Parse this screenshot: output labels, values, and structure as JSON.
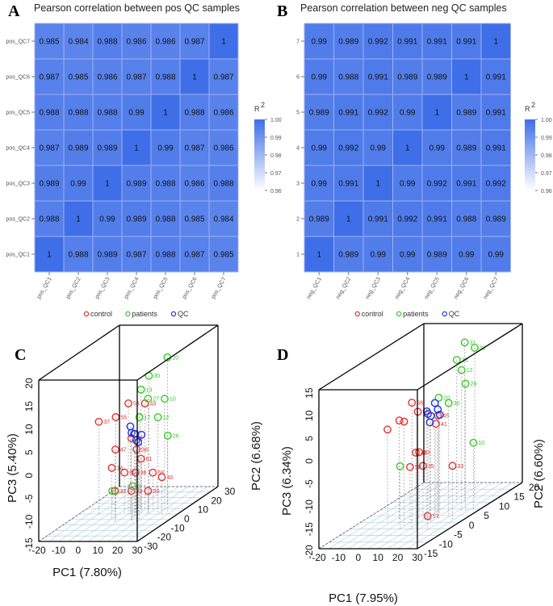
{
  "colors": {
    "control": "#e83030",
    "patients": "#33cc22",
    "qc": "#2233dd",
    "cell_high": "#3f6fe8",
    "cell_low": "#ffffff",
    "grid": "#aaccdd"
  },
  "legend": {
    "control": "control",
    "patients": "patients",
    "qc": "QC"
  },
  "chart_data": [
    {
      "panel": "A",
      "type": "heatmap",
      "title": "Pearson correlation between pos QC samples",
      "samples": [
        "pos_QC1",
        "pos_QC2",
        "pos_QC3",
        "pos_QC4",
        "pos_QC5",
        "pos_QC6",
        "pos_QC7"
      ],
      "matrix_top_to_bottom": [
        [
          "0.985",
          "0.984",
          "0.988",
          "0.986",
          "0.986",
          "0.987",
          "1"
        ],
        [
          "0.987",
          "0.985",
          "0.986",
          "0.987",
          "0.988",
          "1",
          "0.987"
        ],
        [
          "0.988",
          "0.988",
          "0.988",
          "0.99",
          "1",
          "0.988",
          "0.986"
        ],
        [
          "0.987",
          "0.989",
          "0.989",
          "1",
          "0.99",
          "0.987",
          "0.986"
        ],
        [
          "0.989",
          "0.99",
          "1",
          "0.989",
          "0.988",
          "0.986",
          "0.988"
        ],
        [
          "0.988",
          "1",
          "0.99",
          "0.989",
          "0.988",
          "0.985",
          "0.984"
        ],
        [
          "1",
          "0.988",
          "0.989",
          "0.987",
          "0.988",
          "0.987",
          "0.985"
        ]
      ],
      "colorbar": {
        "title": "R",
        "superscript": "2",
        "range": [
          0.96,
          1.0
        ],
        "ticks": [
          "1.00",
          "0.99",
          "0.98",
          "0.97",
          "0.96"
        ]
      }
    },
    {
      "panel": "B",
      "type": "heatmap",
      "title": "Pearson correlation between neg QC samples",
      "samples": [
        "neg_QC1",
        "neg_QC2",
        "neg_QC3",
        "neg_QC4",
        "neg_QC5",
        "neg_QC6",
        "neg_QC7"
      ],
      "row_labels_visible": [
        "1",
        "2",
        "3",
        "4",
        "5",
        "6",
        "7"
      ],
      "matrix_top_to_bottom": [
        [
          "0.99",
          "0.989",
          "0.992",
          "0.991",
          "0.991",
          "0.991",
          "1"
        ],
        [
          "0.99",
          "0.988",
          "0.991",
          "0.989",
          "0.989",
          "1",
          "0.991"
        ],
        [
          "0.989",
          "0.991",
          "0.992",
          "0.99",
          "1",
          "0.989",
          "0.991"
        ],
        [
          "0.99",
          "0.992",
          "0.99",
          "1",
          "0.99",
          "0.989",
          "0.991"
        ],
        [
          "0.99",
          "0.991",
          "1",
          "0.99",
          "0.992",
          "0.991",
          "0.992"
        ],
        [
          "0.989",
          "1",
          "0.991",
          "0.992",
          "0.991",
          "0.988",
          "0.989"
        ],
        [
          "1",
          "0.989",
          "0.99",
          "0.99",
          "0.989",
          "0.99",
          "0.99"
        ]
      ],
      "colorbar": {
        "title": "R",
        "superscript": "2",
        "range": [
          0.96,
          1.0
        ],
        "ticks": [
          "1.00",
          "0.99",
          "0.98",
          "0.97",
          "0.96"
        ]
      }
    },
    {
      "panel": "C",
      "type": "scatter",
      "dimensions": 3,
      "xlabel": "PC1 (7.80%)",
      "ylabel": "PC2 (6.68%)",
      "zlabel": "PC3 (5.40%)",
      "xlim": [
        -20,
        30
      ],
      "ylim": [
        -30,
        30
      ],
      "zlim": [
        -15,
        20
      ],
      "x_ticks": [
        "-20",
        "-10",
        "0",
        "10",
        "20",
        "30"
      ],
      "y_ticks": [
        "-30",
        "-20",
        "-10",
        "0",
        "10",
        "20",
        "30"
      ],
      "z_ticks": [
        "-15",
        "-10",
        "-5",
        "0",
        "5",
        "10",
        "15",
        "20"
      ],
      "series": [
        {
          "name": "control",
          "points": [
            {
              "x": -10,
              "y": 0,
              "z": 5,
              "label": "37"
            },
            {
              "x": 2,
              "y": -5,
              "z": 7,
              "label": "55"
            },
            {
              "x": 5,
              "y": 0,
              "z": 9,
              "label": "56"
            },
            {
              "x": 10,
              "y": 5,
              "z": 8,
              "label": "43"
            },
            {
              "x": 12,
              "y": -8,
              "z": 3,
              "label": "62"
            },
            {
              "x": 16,
              "y": -10,
              "z": 1,
              "label": "38"
            },
            {
              "x": -5,
              "y": 5,
              "z": -2,
              "label": "47"
            },
            {
              "x": 0,
              "y": -5,
              "z": -4,
              "label": "34"
            },
            {
              "x": 3,
              "y": 0,
              "z": -6,
              "label": "60"
            },
            {
              "x": 8,
              "y": 5,
              "z": -4,
              "label": "61"
            },
            {
              "x": 12,
              "y": -5,
              "z": -5,
              "label": "36"
            },
            {
              "x": 5,
              "y": -10,
              "z": -8,
              "label": "33"
            },
            {
              "x": 10,
              "y": -5,
              "z": -9,
              "label": "48"
            },
            {
              "x": 15,
              "y": 0,
              "z": -10,
              "label": "39"
            },
            {
              "x": 22,
              "y": 0,
              "z": -7,
              "label": "40"
            },
            {
              "x": 14,
              "y": 5,
              "z": -7,
              "label": "59"
            }
          ]
        },
        {
          "name": "patients",
          "points": [
            {
              "x": 12,
              "y": 5,
              "z": 14,
              "label": "30"
            },
            {
              "x": 18,
              "y": 10,
              "z": 17,
              "label": "20"
            },
            {
              "x": 8,
              "y": 5,
              "z": 11,
              "label": "13"
            },
            {
              "x": 15,
              "y": 0,
              "z": 10,
              "label": "27"
            },
            {
              "x": 20,
              "y": 5,
              "z": 9,
              "label": "10"
            },
            {
              "x": 14,
              "y": -5,
              "z": 7,
              "label": "17"
            },
            {
              "x": 20,
              "y": 0,
              "z": 6,
              "label": "12"
            },
            {
              "x": 25,
              "y": 0,
              "z": 2,
              "label": "26"
            },
            {
              "x": -10,
              "y": 10,
              "z": -12,
              "label": "1"
            },
            {
              "x": 14,
              "y": -10,
              "z": -7,
              "label": "2"
            }
          ]
        },
        {
          "name": "QC",
          "points": [
            {
              "x": 6,
              "y": 0,
              "z": 4
            },
            {
              "x": 8,
              "y": -2,
              "z": 3
            },
            {
              "x": 7,
              "y": 2,
              "z": 2
            },
            {
              "x": 9,
              "y": 0,
              "z": 1
            },
            {
              "x": 10,
              "y": -3,
              "z": 3
            },
            {
              "x": 8,
              "y": 3,
              "z": 0
            },
            {
              "x": 11,
              "y": 1,
              "z": 2
            }
          ]
        }
      ]
    },
    {
      "panel": "D",
      "type": "scatter",
      "dimensions": 3,
      "xlabel": "PC1 (7.95%)",
      "ylabel": "PC2 (6.60%)",
      "zlabel": "PC3 (6.34%)",
      "xlim": [
        -20,
        30
      ],
      "ylim": [
        -15,
        20
      ],
      "zlim": [
        -20,
        15
      ],
      "x_ticks": [
        "-20",
        "-10",
        "0",
        "10",
        "20",
        "30"
      ],
      "y_ticks": [
        "-15",
        "-10",
        "-5",
        "0",
        "5",
        "10",
        "15",
        "20"
      ],
      "z_ticks": [
        "-20",
        "-15",
        "-10",
        "-5",
        "0",
        "5",
        "10",
        "15"
      ],
      "series": [
        {
          "name": "control",
          "points": [
            {
              "x": 12,
              "y": -5,
              "z": 8,
              "label": "58"
            },
            {
              "x": 15,
              "y": -5,
              "z": 6,
              "label": "55"
            },
            {
              "x": -8,
              "y": 0,
              "z": 0,
              "label": ""
            },
            {
              "x": -2,
              "y": 0,
              "z": 2,
              "label": ""
            },
            {
              "x": 5,
              "y": -3,
              "z": 3,
              "label": ""
            },
            {
              "x": 10,
              "y": 5,
              "z": 1,
              "label": "45"
            },
            {
              "x": 12,
              "y": 3,
              "z": 0,
              "label": "41"
            },
            {
              "x": 14,
              "y": -5,
              "z": -3,
              "label": "42"
            },
            {
              "x": 8,
              "y": 0,
              "z": -5,
              "label": "43"
            },
            {
              "x": 8,
              "y": -3,
              "z": -7,
              "label": "58"
            },
            {
              "x": 10,
              "y": 0,
              "z": -8,
              "label": "35"
            },
            {
              "x": 25,
              "y": 0,
              "z": -8,
              "label": "33"
            },
            {
              "x": 20,
              "y": -5,
              "z": -17,
              "label": "57"
            }
          ]
        },
        {
          "name": "patients",
          "points": [
            {
              "x": 16,
              "y": 10,
              "z": 15,
              "label": "31"
            },
            {
              "x": 18,
              "y": 12,
              "z": 13,
              "label": "32"
            },
            {
              "x": 15,
              "y": 8,
              "z": 12,
              "label": "36"
            },
            {
              "x": 22,
              "y": 5,
              "z": 11,
              "label": "12"
            },
            {
              "x": 24,
              "y": 5,
              "z": 8,
              "label": "29"
            },
            {
              "x": 18,
              "y": 0,
              "z": 7,
              "label": "20"
            },
            {
              "x": 20,
              "y": 2,
              "z": 5,
              "label": "30"
            },
            {
              "x": 28,
              "y": 5,
              "z": -5,
              "label": "10"
            },
            {
              "x": 6,
              "y": -5,
              "z": -6,
              "label": ""
            }
          ]
        },
        {
          "name": "QC",
          "points": [
            {
              "x": 12,
              "y": 0,
              "z": 4
            },
            {
              "x": 14,
              "y": 0,
              "z": 3
            },
            {
              "x": 13,
              "y": 2,
              "z": 5
            },
            {
              "x": 15,
              "y": -1,
              "z": 2
            },
            {
              "x": 16,
              "y": 1,
              "z": 4
            },
            {
              "x": 11,
              "y": 1,
              "z": 3
            },
            {
              "x": 14,
              "y": 3,
              "z": 2
            }
          ]
        }
      ]
    }
  ]
}
